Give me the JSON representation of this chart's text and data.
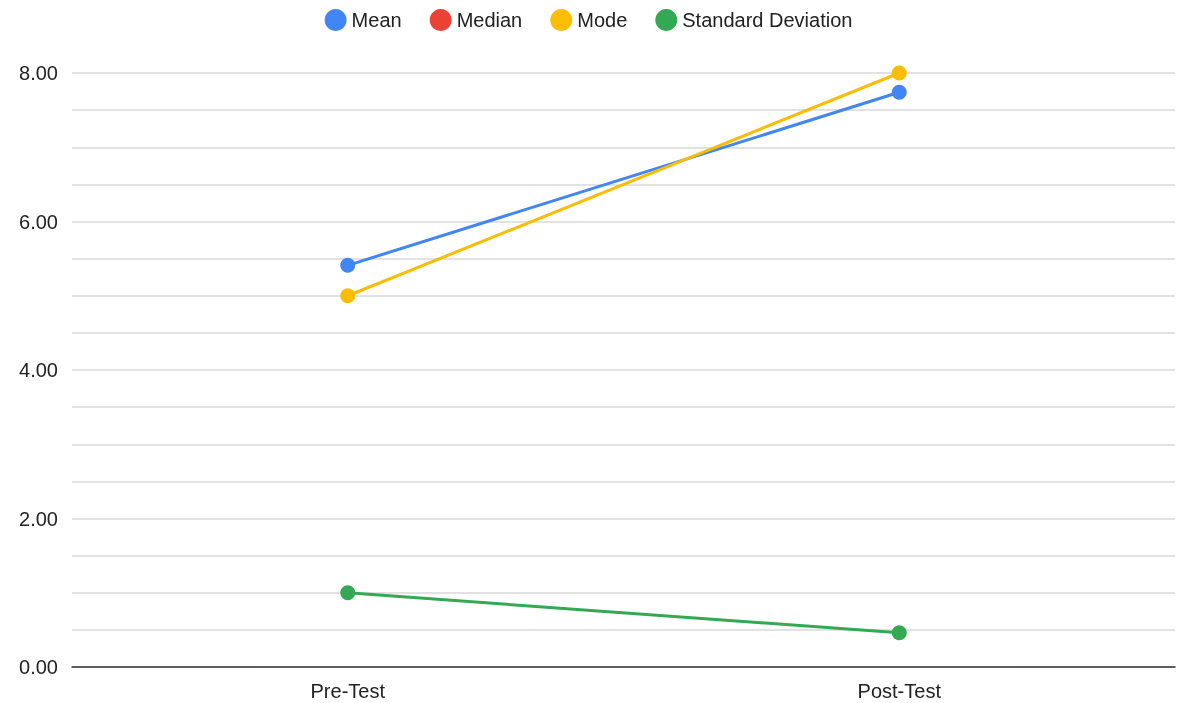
{
  "chart_data": {
    "type": "line",
    "categories": [
      "Pre-Test",
      "Post-Test"
    ],
    "series": [
      {
        "name": "Mean",
        "color": "#4285f4",
        "values": [
          5.41,
          7.74
        ]
      },
      {
        "name": "Median",
        "color": "#ea4335",
        "values": [
          null,
          null
        ]
      },
      {
        "name": "Mode",
        "color": "#fbbc04",
        "values": [
          5,
          8
        ]
      },
      {
        "name": "Standard Deviation",
        "color": "#34a853",
        "values": [
          1.0,
          0.46
        ]
      }
    ],
    "ylim": [
      0,
      8
    ],
    "yticks": [
      {
        "value": 0,
        "label": "0.00"
      },
      {
        "value": 0.5,
        "label": null
      },
      {
        "value": 1,
        "label": null
      },
      {
        "value": 1.5,
        "label": null
      },
      {
        "value": 2,
        "label": "2.00"
      },
      {
        "value": 2.5,
        "label": null
      },
      {
        "value": 3,
        "label": null
      },
      {
        "value": 3.5,
        "label": null
      },
      {
        "value": 4,
        "label": "4.00"
      },
      {
        "value": 4.5,
        "label": null
      },
      {
        "value": 5,
        "label": null
      },
      {
        "value": 5.5,
        "label": null
      },
      {
        "value": 6,
        "label": "6.00"
      },
      {
        "value": 6.5,
        "label": null
      },
      {
        "value": 7,
        "label": null
      },
      {
        "value": 7.5,
        "label": null
      },
      {
        "value": 8,
        "label": "8.00"
      }
    ],
    "grid": "y",
    "legend": "top",
    "marker": "circle",
    "line_style": "solid"
  }
}
